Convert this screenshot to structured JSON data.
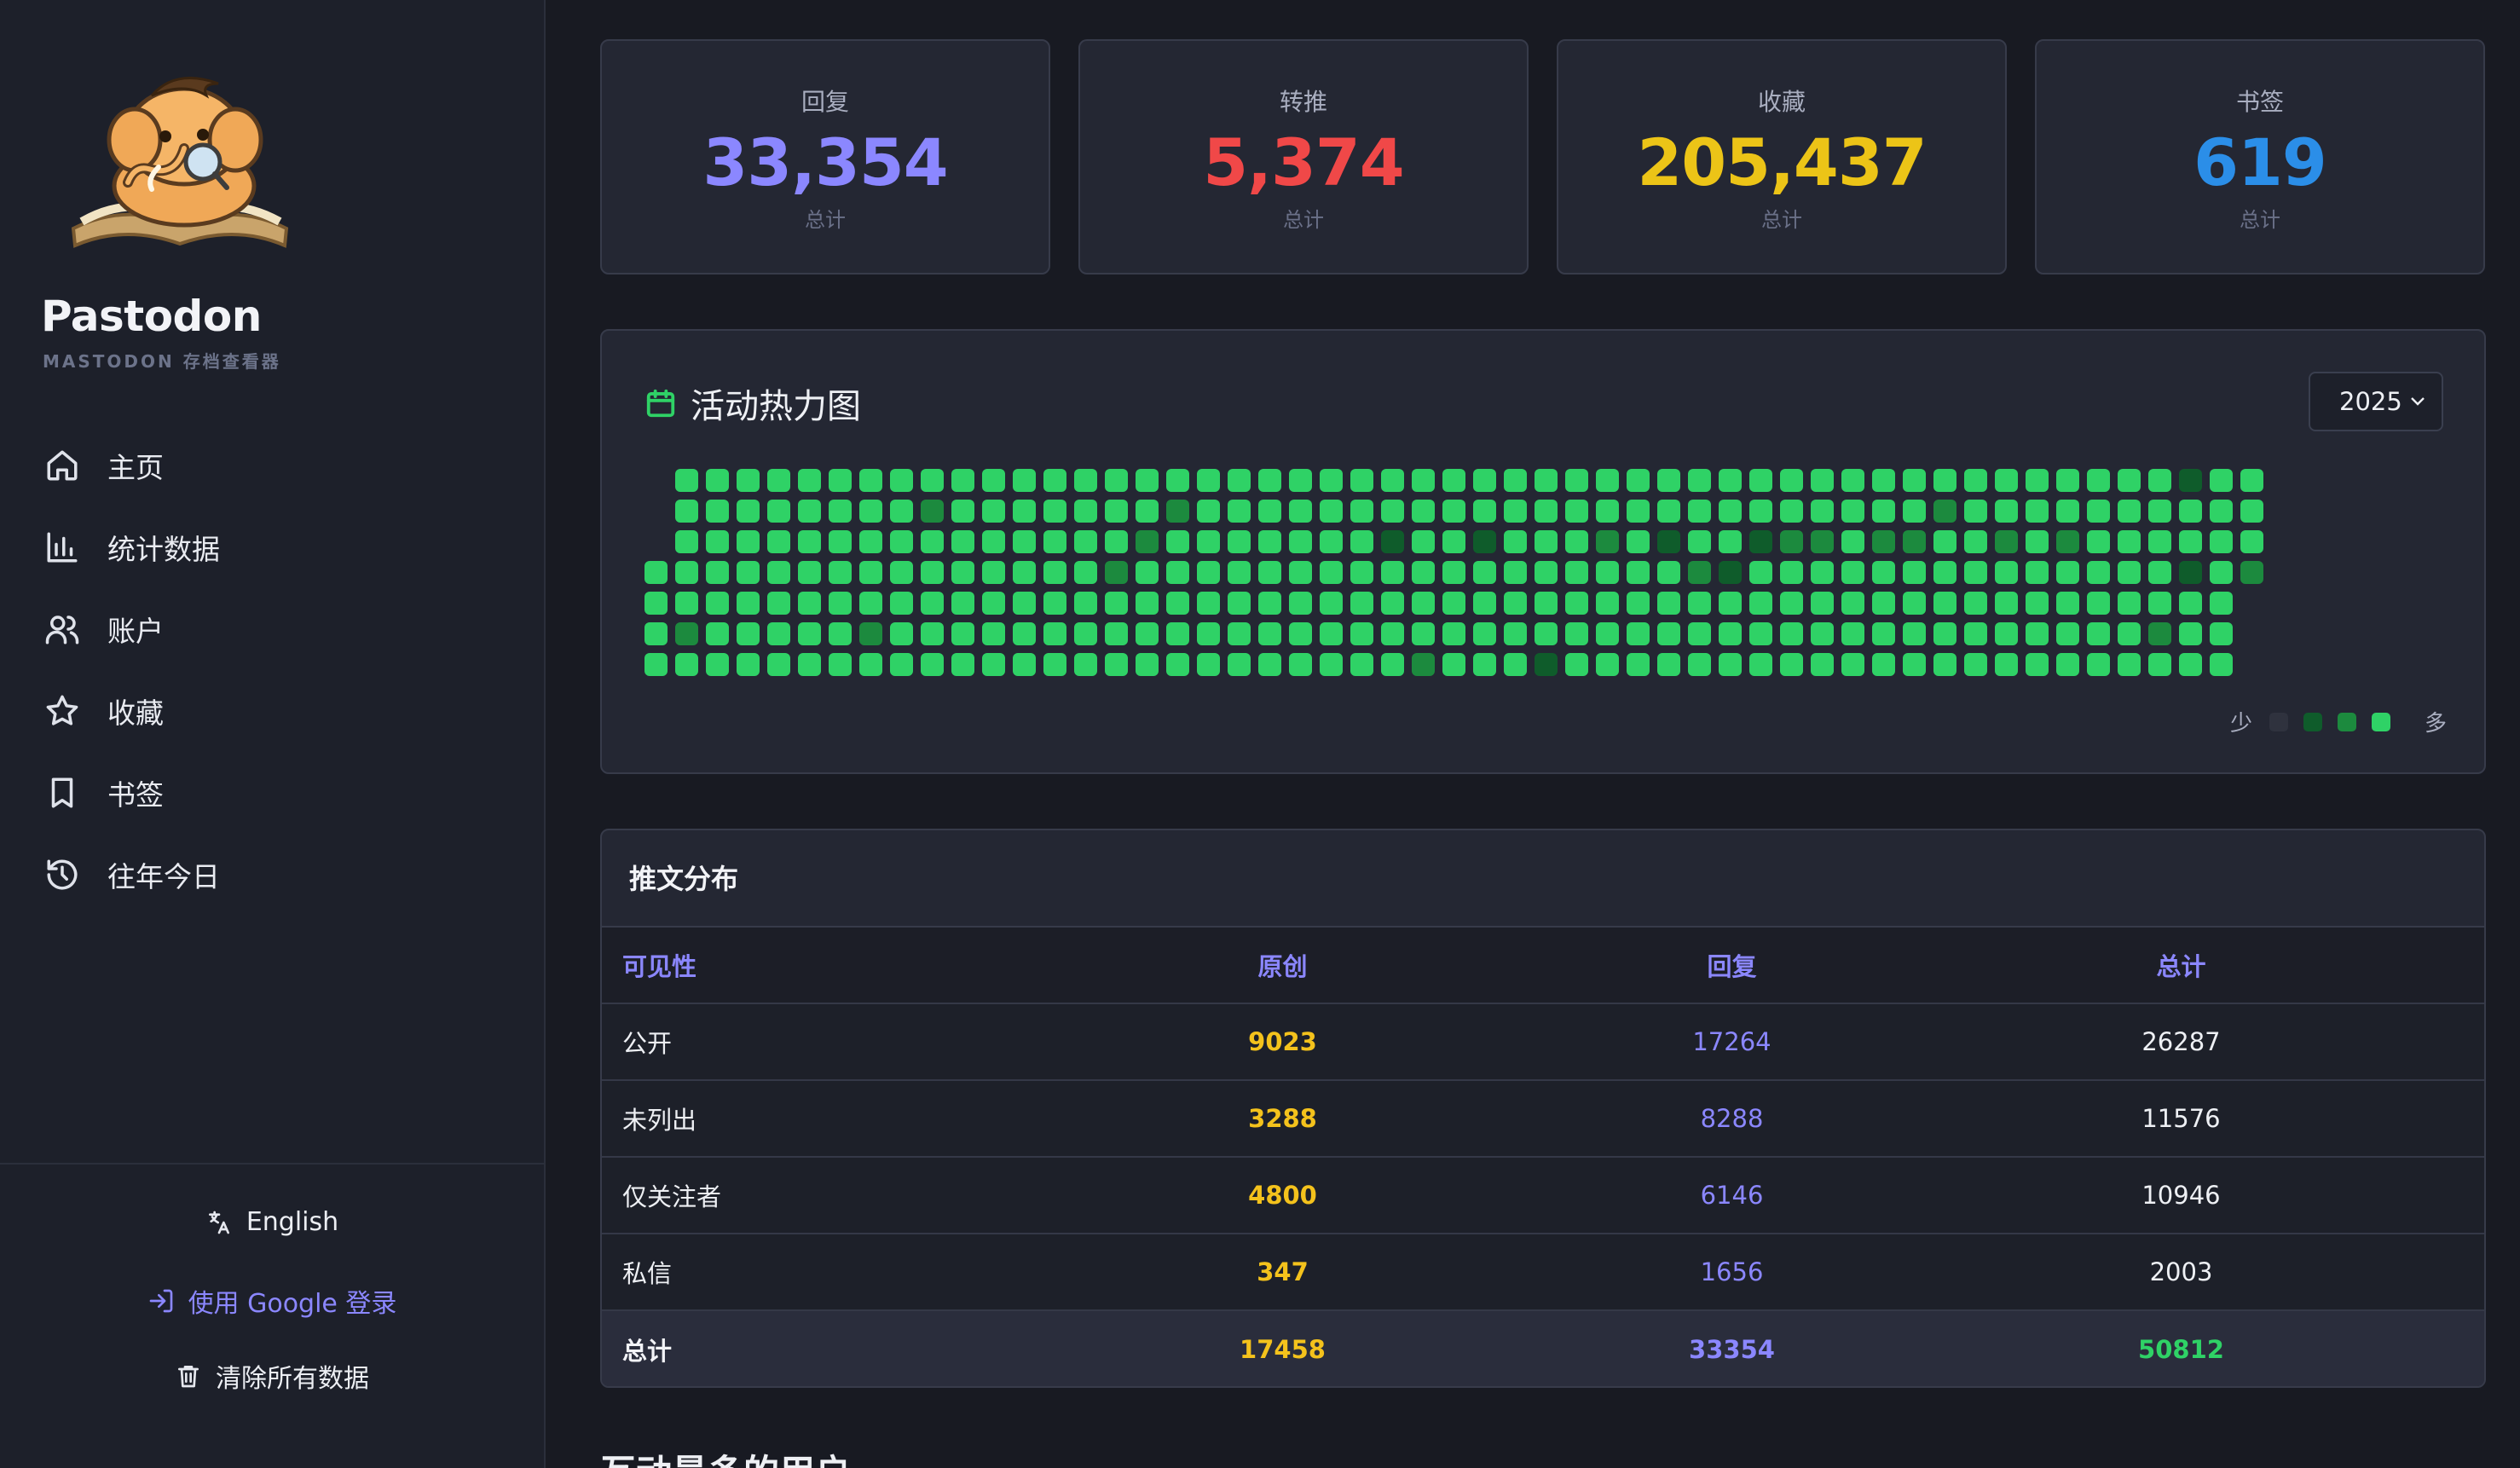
{
  "sidebar": {
    "brand_name": "Pastodon",
    "brand_sub": "MASTODON 存档查看器",
    "nav": [
      {
        "label": "主页",
        "icon": "home-icon"
      },
      {
        "label": "统计数据",
        "icon": "bar-chart-icon"
      },
      {
        "label": "账户",
        "icon": "users-icon"
      },
      {
        "label": "收藏",
        "icon": "star-icon"
      },
      {
        "label": "书签",
        "icon": "bookmark-icon"
      },
      {
        "label": "往年今日",
        "icon": "history-icon"
      }
    ],
    "footer": {
      "language": "English",
      "login": "使用 Google 登录",
      "clear": "清除所有数据"
    }
  },
  "stats": [
    {
      "label": "回复",
      "value": "33,354",
      "sub": "总计",
      "color": "#8b87ff"
    },
    {
      "label": "转推",
      "value": "5,374",
      "sub": "总计",
      "color": "#f04848"
    },
    {
      "label": "收藏",
      "value": "205,437",
      "sub": "总计",
      "color": "#ecc417"
    },
    {
      "label": "书签",
      "value": "619",
      "sub": "总计",
      "color": "#2b8ee8"
    }
  ],
  "heatmap": {
    "title": "活动热力图",
    "year": "2025",
    "legend_less": "少",
    "legend_more": "多",
    "colors": [
      "#2f323e",
      "#0f5c2b",
      "#1c8a3e",
      "#2fd266"
    ],
    "columns": 52,
    "first_weekday": 3,
    "days": 365,
    "low_days": [
      10,
      52,
      62,
      106,
      112,
      118,
      168,
      179,
      189,
      207,
      217,
      231,
      239,
      246,
      252,
      259,
      266,
      280,
      287,
      293,
      308,
      322,
      346,
      348,
      351,
      365
    ]
  },
  "table": {
    "title": "推文分布",
    "headers": [
      "可见性",
      "原创",
      "回复",
      "总计"
    ],
    "rows": [
      [
        "公开",
        "9023",
        "17264",
        "26287"
      ],
      [
        "未列出",
        "3288",
        "8288",
        "11576"
      ],
      [
        "仅关注者",
        "4800",
        "6146",
        "10946"
      ],
      [
        "私信",
        "347",
        "1656",
        "2003"
      ]
    ],
    "total": [
      "总计",
      "17458",
      "33354",
      "50812"
    ]
  },
  "next_section": "互动最多的用户"
}
